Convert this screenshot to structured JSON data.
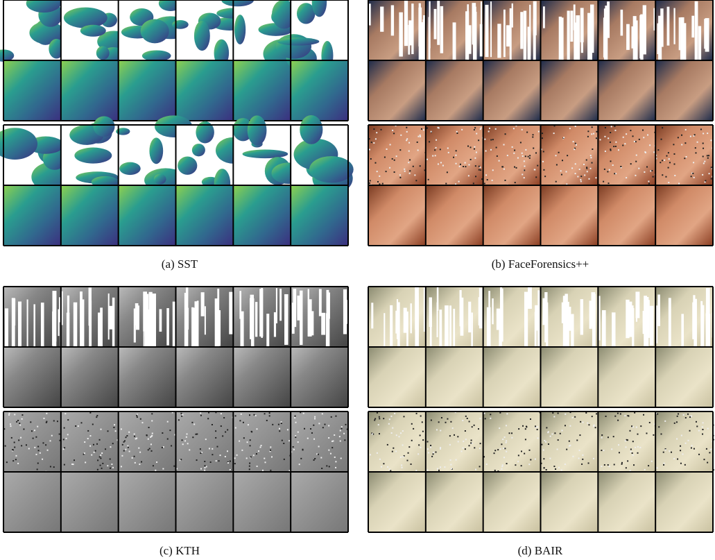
{
  "panels": [
    {
      "caption": "(a) SST"
    },
    {
      "caption": "(b) FaceForensics++"
    },
    {
      "caption": "(c) KTH"
    },
    {
      "caption": "(d) BAIR"
    }
  ]
}
